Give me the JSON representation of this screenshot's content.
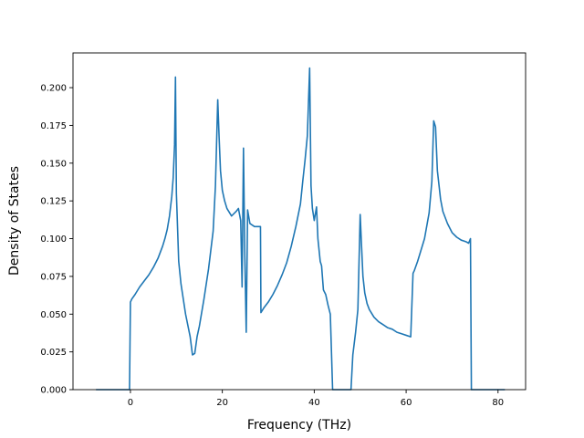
{
  "chart_data": {
    "type": "line",
    "title": "",
    "xlabel": "Frequency (THz)",
    "ylabel": "Density of States",
    "xlim": [
      -12.5,
      86
    ],
    "ylim": [
      0,
      0.223
    ],
    "grid": false,
    "xticks": [
      0,
      20,
      40,
      60,
      80
    ],
    "xtick_labels": [
      "0",
      "20",
      "40",
      "60",
      "80"
    ],
    "yticks": [
      0.0,
      0.025,
      0.05,
      0.075,
      0.1,
      0.125,
      0.15,
      0.175,
      0.2
    ],
    "ytick_labels": [
      "0.000",
      "0.025",
      "0.050",
      "0.075",
      "0.100",
      "0.125",
      "0.150",
      "0.175",
      "0.200"
    ],
    "series": [
      {
        "color": "#1f77b4",
        "x": [
          -7.5,
          -0.2,
          0.0,
          0.3,
          1,
          2,
          3,
          4,
          5,
          6,
          7,
          7.5,
          8,
          8.5,
          9,
          9.3,
          9.6,
          9.8,
          10,
          10.5,
          11,
          12,
          13,
          13.5,
          14,
          14.5,
          15,
          16,
          17,
          18,
          18.5,
          19,
          19.3,
          19.6,
          20,
          20.5,
          21,
          22,
          23,
          23.5,
          24,
          24.3,
          24.6,
          24.9,
          25.2,
          25.5,
          26,
          27,
          28.3,
          28.4,
          29,
          30,
          31,
          32,
          33,
          34,
          35,
          36,
          37,
          37.5,
          38,
          38.5,
          39,
          39.3,
          39.6,
          40,
          40.5,
          40.8,
          41,
          41.3,
          41.6,
          42,
          42.5,
          43,
          43.5,
          44,
          44.3,
          44.5,
          48,
          48.4,
          49,
          49.5,
          50,
          50.3,
          50.6,
          51,
          51.5,
          52,
          53,
          54,
          55,
          56,
          57,
          58,
          59,
          60,
          61,
          61.5,
          61.8,
          62.5,
          63,
          64,
          65,
          65.6,
          66,
          66.4,
          66.8,
          67.5,
          68,
          69,
          70,
          71,
          72,
          73,
          73.6,
          74,
          74.2,
          74.4,
          81.5
        ],
        "y": [
          0,
          0,
          0.058,
          0.06,
          0.063,
          0.068,
          0.072,
          0.076,
          0.081,
          0.087,
          0.095,
          0.1,
          0.106,
          0.115,
          0.128,
          0.14,
          0.162,
          0.207,
          0.13,
          0.085,
          0.07,
          0.05,
          0.035,
          0.023,
          0.024,
          0.035,
          0.042,
          0.06,
          0.08,
          0.105,
          0.135,
          0.192,
          0.167,
          0.145,
          0.132,
          0.125,
          0.12,
          0.115,
          0.118,
          0.12,
          0.112,
          0.068,
          0.16,
          0.087,
          0.038,
          0.119,
          0.11,
          0.108,
          0.108,
          0.051,
          0.054,
          0.058,
          0.063,
          0.069,
          0.076,
          0.084,
          0.095,
          0.108,
          0.123,
          0.138,
          0.152,
          0.168,
          0.213,
          0.135,
          0.12,
          0.112,
          0.121,
          0.1,
          0.094,
          0.085,
          0.082,
          0.066,
          0.063,
          0.056,
          0.05,
          0.0,
          0.0,
          0.0,
          0.0,
          0.023,
          0.038,
          0.053,
          0.116,
          0.095,
          0.075,
          0.064,
          0.057,
          0.053,
          0.048,
          0.045,
          0.043,
          0.041,
          0.04,
          0.038,
          0.037,
          0.036,
          0.035,
          0.077,
          0.079,
          0.085,
          0.09,
          0.1,
          0.117,
          0.138,
          0.178,
          0.174,
          0.145,
          0.126,
          0.118,
          0.11,
          0.104,
          0.101,
          0.099,
          0.098,
          0.097,
          0.1,
          0.0,
          0.0,
          0.0
        ]
      }
    ]
  }
}
